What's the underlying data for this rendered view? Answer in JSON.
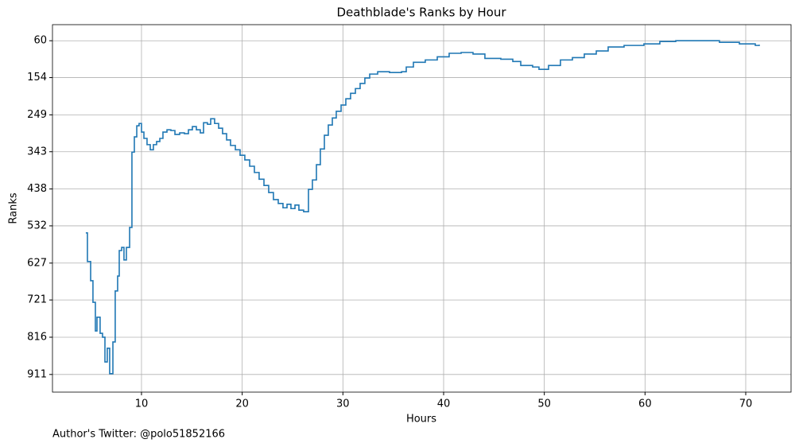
{
  "chart_data": {
    "type": "step",
    "title": "Deathblade's Ranks by Hour",
    "xlabel": "Hours",
    "ylabel": "Ranks",
    "footnote": "Author's Twitter: @polo51852166",
    "color": "#1f77b4",
    "grid": true,
    "xlim": [
      1.16,
      74.5
    ],
    "xticks": [
      10,
      20,
      30,
      40,
      50,
      60,
      70
    ],
    "ylim": [
      956,
      19
    ],
    "yticks": [
      60,
      154,
      249,
      343,
      438,
      532,
      627,
      721,
      816,
      911
    ],
    "x": [
      4.47,
      4.63,
      4.95,
      5.18,
      5.42,
      5.58,
      5.89,
      6.13,
      6.37,
      6.6,
      6.84,
      7.16,
      7.39,
      7.63,
      7.79,
      8.03,
      8.26,
      8.5,
      8.82,
      9.05,
      9.29,
      9.53,
      9.76,
      10.0,
      10.24,
      10.55,
      10.87,
      11.18,
      11.5,
      11.82,
      12.13,
      12.53,
      12.92,
      13.32,
      13.79,
      14.26,
      14.66,
      15.05,
      15.45,
      15.84,
      16.16,
      16.55,
      16.87,
      17.26,
      17.66,
      18.05,
      18.45,
      18.84,
      19.32,
      19.79,
      20.26,
      20.74,
      21.21,
      21.68,
      22.16,
      22.63,
      23.1,
      23.58,
      24.05,
      24.45,
      24.84,
      25.24,
      25.63,
      26.1,
      26.58,
      26.97,
      27.37,
      27.76,
      28.16,
      28.55,
      28.95,
      29.34,
      29.82,
      30.29,
      30.76,
      31.24,
      31.71,
      32.18,
      32.66,
      33.45,
      34.63,
      35.82,
      36.29,
      37.0,
      38.18,
      39.37,
      40.55,
      41.74,
      42.92,
      44.1,
      45.68,
      46.87,
      47.66,
      48.84,
      49.47,
      50.42,
      51.6,
      52.79,
      53.97,
      55.16,
      56.34,
      57.92,
      59.89,
      61.47,
      63.05,
      65.42,
      67.39,
      69.37,
      70.95,
      71.34
    ],
    "values": [
      550,
      623,
      672,
      727,
      800,
      765,
      806,
      816,
      879,
      844,
      909,
      828,
      698,
      660,
      595,
      587,
      619,
      587,
      536,
      344,
      305,
      277,
      271,
      293,
      309,
      325,
      338,
      325,
      317,
      309,
      293,
      287,
      289,
      299,
      295,
      297,
      287,
      279,
      287,
      295,
      269,
      273,
      259,
      271,
      283,
      297,
      313,
      327,
      338,
      352,
      364,
      380,
      396,
      413,
      429,
      447,
      465,
      475,
      486,
      477,
      488,
      479,
      492,
      496,
      439,
      415,
      376,
      336,
      301,
      275,
      257,
      240,
      224,
      208,
      194,
      182,
      169,
      155,
      145,
      139,
      141,
      139,
      127,
      115,
      109,
      101,
      92,
      90,
      94,
      105,
      107,
      113,
      123,
      127,
      133,
      123,
      109,
      103,
      94,
      86,
      76,
      72,
      68,
      62,
      60,
      60,
      64,
      68,
      72,
      70
    ]
  }
}
